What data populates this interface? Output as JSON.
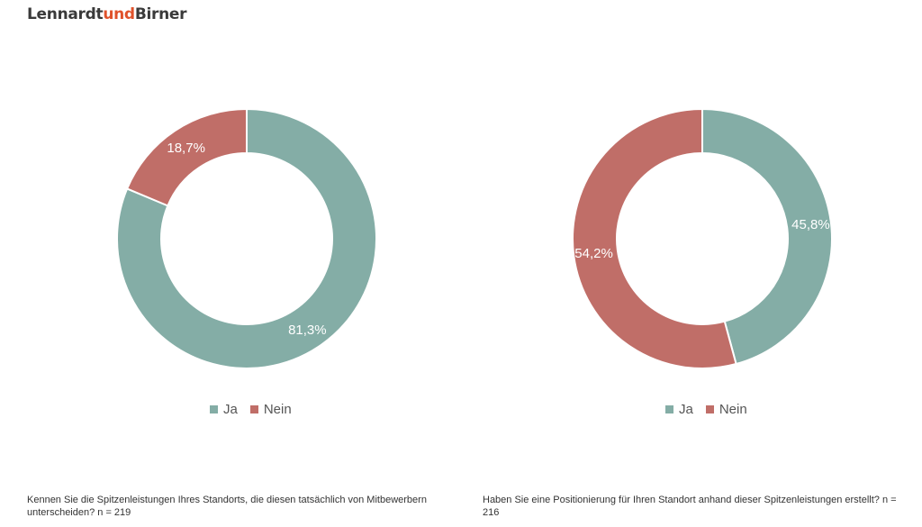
{
  "brand": {
    "part1": "Lennardt",
    "part2": "und",
    "part3": "Birner"
  },
  "colors": {
    "ja": "#84ada6",
    "nein": "#c06e68",
    "accent": "#e0522b"
  },
  "chart_data": [
    {
      "type": "pie",
      "variant": "donut",
      "categories": [
        "Ja",
        "Nein"
      ],
      "values": [
        81.3,
        18.7
      ],
      "labels": [
        "81,3%",
        "18,7%"
      ],
      "legend": {
        "items": [
          "Ja",
          "Nein"
        ],
        "placement": "bottom"
      },
      "caption": "Kennen Sie die Spitzenleistungen Ihres Standorts, die diesen tatsächlich von Mitbewerbern unterscheiden? n = 219"
    },
    {
      "type": "pie",
      "variant": "donut",
      "categories": [
        "Ja",
        "Nein"
      ],
      "values": [
        45.8,
        54.2
      ],
      "labels": [
        "45,8%",
        "54,2%"
      ],
      "legend": {
        "items": [
          "Ja",
          "Nein"
        ],
        "placement": "bottom"
      },
      "caption": "Haben Sie eine Positionierung für Ihren Standort anhand dieser Spitzenleistungen erstellt? n = 216"
    }
  ]
}
